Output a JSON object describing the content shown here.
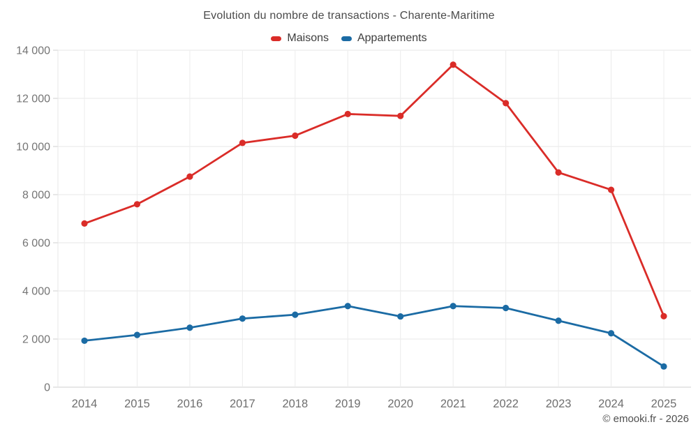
{
  "header": {
    "title": "Evolution du nombre de transactions - Charente-Maritime"
  },
  "footer": {
    "credit": "© emooki.fr - 2026"
  },
  "chart_data": {
    "type": "line",
    "title": "Evolution du nombre de transactions - Charente-Maritime",
    "x": [
      2014,
      2015,
      2016,
      2017,
      2018,
      2019,
      2020,
      2021,
      2022,
      2023,
      2024,
      2025
    ],
    "x_labels": [
      "2014",
      "2015",
      "2016",
      "2017",
      "2018",
      "2019",
      "2020",
      "2021",
      "2022",
      "2023",
      "2024",
      "2025"
    ],
    "series": [
      {
        "name": "Maisons",
        "color": "#da2c28",
        "values": [
          6800,
          7600,
          8750,
          10150,
          10450,
          11350,
          11270,
          13400,
          11800,
          8920,
          8200,
          2950
        ]
      },
      {
        "name": "Appartements",
        "color": "#1b6ba4",
        "values": [
          1930,
          2170,
          2470,
          2850,
          3010,
          3370,
          2940,
          3370,
          3290,
          2760,
          2240,
          860
        ]
      }
    ],
    "xlabel": "",
    "ylabel": "",
    "ylim": [
      0,
      14000
    ],
    "y_ticks": [
      {
        "value": 0,
        "label": "0"
      },
      {
        "value": 2000,
        "label": "2 000"
      },
      {
        "value": 4000,
        "label": "4 000"
      },
      {
        "value": 6000,
        "label": "6 000"
      },
      {
        "value": 8000,
        "label": "8 000"
      },
      {
        "value": 10000,
        "label": "10 000"
      },
      {
        "value": 12000,
        "label": "12 000"
      },
      {
        "value": 14000,
        "label": "14 000"
      }
    ],
    "grid": true,
    "legend_position": "top"
  }
}
